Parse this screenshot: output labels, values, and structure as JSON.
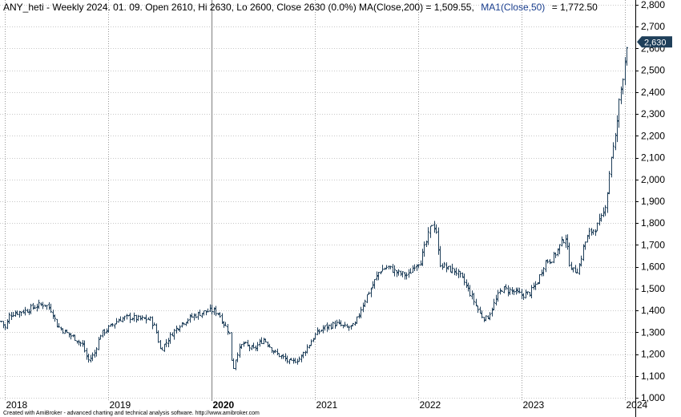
{
  "header": {
    "main": "ANY_heti - Weekly 2024. 01. 09. Open 2610, Hi 2630, Lo 2600, Close 2630 (0.0%) MA(Close,200) = 1,509.55,",
    "ma1": "MA1(Close,50)",
    "ma1_value": "= 1,772.50"
  },
  "footer_text": "Created with AmiBroker - advanced charting and technical analysis software. http://www.amibroker.com",
  "last_price_label": "2,630",
  "colors": {
    "bars": "#1f3f5a",
    "last_tag_bg": "#1f3f5a",
    "ma1": "#1a3f8f",
    "grid": "#c8c8c8",
    "year_line": "#9a9a9a"
  },
  "chart_data": {
    "type": "ohlc",
    "symbol": "ANY_heti",
    "interval": "Weekly",
    "ylim": [
      1000,
      2800
    ],
    "yticks": [
      1000,
      1100,
      1200,
      1300,
      1400,
      1500,
      1600,
      1700,
      1800,
      1900,
      2000,
      2100,
      2200,
      2300,
      2400,
      2500,
      2600,
      2700,
      2800
    ],
    "ytick_labels": [
      "1,000",
      "1,100",
      "1,200",
      "1,300",
      "1,400",
      "1,500",
      "1,600",
      "1,700",
      "1,800",
      "1,900",
      "2,000",
      "2,100",
      "2,200",
      "2,300",
      "2,400",
      "2,500",
      "2,600",
      "2,700",
      "2,800"
    ],
    "xlim": [
      2017.95,
      2024.1
    ],
    "xticks": [
      {
        "year": 2018,
        "label": "2018",
        "bold": false
      },
      {
        "year": 2019,
        "label": "2019",
        "bold": false
      },
      {
        "year": 2020,
        "label": "2020",
        "bold": true
      },
      {
        "year": 2021,
        "label": "2021",
        "bold": false
      },
      {
        "year": 2022,
        "label": "2022",
        "bold": false
      },
      {
        "year": 2023,
        "label": "2023",
        "bold": false
      },
      {
        "year": 2024,
        "label": "2024",
        "bold": false
      }
    ],
    "grid": true,
    "last_close": 2630,
    "last_bar": {
      "date": "2024. 01. 09.",
      "open": 2610,
      "high": 2630,
      "low": 2600,
      "close": 2630,
      "change": "0.0%"
    },
    "indicators": [
      {
        "name": "MA(Close,200)",
        "value": 1509.55
      },
      {
        "name": "MA1(Close,50)",
        "value": 1772.5
      }
    ],
    "close_path": [
      [
        2017.96,
        1350
      ],
      [
        2018.0,
        1320
      ],
      [
        2018.04,
        1380
      ],
      [
        2018.1,
        1390
      ],
      [
        2018.2,
        1400
      ],
      [
        2018.3,
        1420
      ],
      [
        2018.38,
        1430
      ],
      [
        2018.45,
        1400
      ],
      [
        2018.5,
        1330
      ],
      [
        2018.58,
        1300
      ],
      [
        2018.68,
        1270
      ],
      [
        2018.75,
        1240
      ],
      [
        2018.8,
        1170
      ],
      [
        2018.86,
        1200
      ],
      [
        2018.92,
        1290
      ],
      [
        2019.0,
        1320
      ],
      [
        2019.1,
        1360
      ],
      [
        2019.2,
        1370
      ],
      [
        2019.3,
        1360
      ],
      [
        2019.4,
        1360
      ],
      [
        2019.45,
        1320
      ],
      [
        2019.5,
        1220
      ],
      [
        2019.55,
        1250
      ],
      [
        2019.62,
        1300
      ],
      [
        2019.7,
        1340
      ],
      [
        2019.8,
        1370
      ],
      [
        2019.9,
        1390
      ],
      [
        2020.0,
        1400
      ],
      [
        2020.06,
        1390
      ],
      [
        2020.1,
        1350
      ],
      [
        2020.17,
        1300
      ],
      [
        2020.2,
        1120
      ],
      [
        2020.24,
        1200
      ],
      [
        2020.3,
        1250
      ],
      [
        2020.4,
        1220
      ],
      [
        2020.5,
        1270
      ],
      [
        2020.6,
        1210
      ],
      [
        2020.7,
        1180
      ],
      [
        2020.76,
        1160
      ],
      [
        2020.85,
        1180
      ],
      [
        2020.92,
        1230
      ],
      [
        2021.0,
        1290
      ],
      [
        2021.08,
        1320
      ],
      [
        2021.15,
        1330
      ],
      [
        2021.2,
        1340
      ],
      [
        2021.3,
        1320
      ],
      [
        2021.38,
        1330
      ],
      [
        2021.45,
        1420
      ],
      [
        2021.5,
        1470
      ],
      [
        2021.55,
        1510
      ],
      [
        2021.62,
        1580
      ],
      [
        2021.7,
        1600
      ],
      [
        2021.8,
        1570
      ],
      [
        2021.9,
        1560
      ],
      [
        2021.96,
        1610
      ],
      [
        2022.02,
        1630
      ],
      [
        2022.08,
        1720
      ],
      [
        2022.13,
        1800
      ],
      [
        2022.17,
        1770
      ],
      [
        2022.2,
        1620
      ],
      [
        2022.28,
        1590
      ],
      [
        2022.36,
        1580
      ],
      [
        2022.44,
        1530
      ],
      [
        2022.52,
        1460
      ],
      [
        2022.6,
        1380
      ],
      [
        2022.66,
        1360
      ],
      [
        2022.72,
        1420
      ],
      [
        2022.8,
        1500
      ],
      [
        2022.9,
        1490
      ],
      [
        2023.0,
        1470
      ],
      [
        2023.08,
        1480
      ],
      [
        2023.15,
        1530
      ],
      [
        2023.22,
        1620
      ],
      [
        2023.3,
        1640
      ],
      [
        2023.37,
        1700
      ],
      [
        2023.42,
        1740
      ],
      [
        2023.46,
        1620
      ],
      [
        2023.5,
        1580
      ],
      [
        2023.55,
        1590
      ],
      [
        2023.6,
        1700
      ],
      [
        2023.66,
        1760
      ],
      [
        2023.72,
        1780
      ],
      [
        2023.78,
        1830
      ],
      [
        2023.82,
        1920
      ],
      [
        2023.86,
        2100
      ],
      [
        2023.9,
        2180
      ],
      [
        2023.94,
        2350
      ],
      [
        2023.98,
        2480
      ],
      [
        2024.02,
        2630
      ]
    ]
  }
}
